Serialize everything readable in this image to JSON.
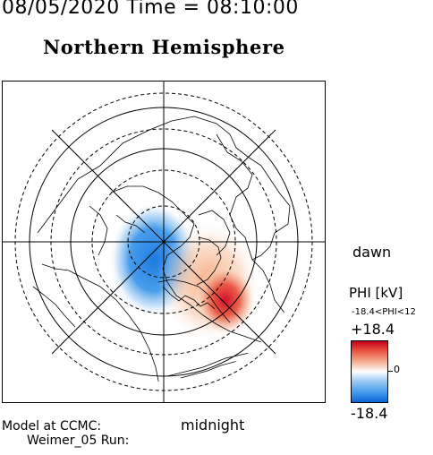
{
  "header": {
    "timestamp": "08/05/2020 Time = 08:10:00",
    "title": "Northern Hemisphere"
  },
  "map": {
    "projection": "polar-stereographic",
    "pole": "north",
    "dawn_label": "dawn",
    "midnight_label": "midnight"
  },
  "legend": {
    "title": "PHI [kV]",
    "range_text": "-18.4<PHI<12",
    "max_label": "+18.4",
    "min_label": "-18.4",
    "zero_label": "0",
    "colors": {
      "positive": "#d2102a",
      "neutral": "#ffffff",
      "negative": "#1e7be0"
    }
  },
  "footer": {
    "model_label": "Model at CCMC:",
    "run_label": "Weimer_05 Run:"
  }
}
